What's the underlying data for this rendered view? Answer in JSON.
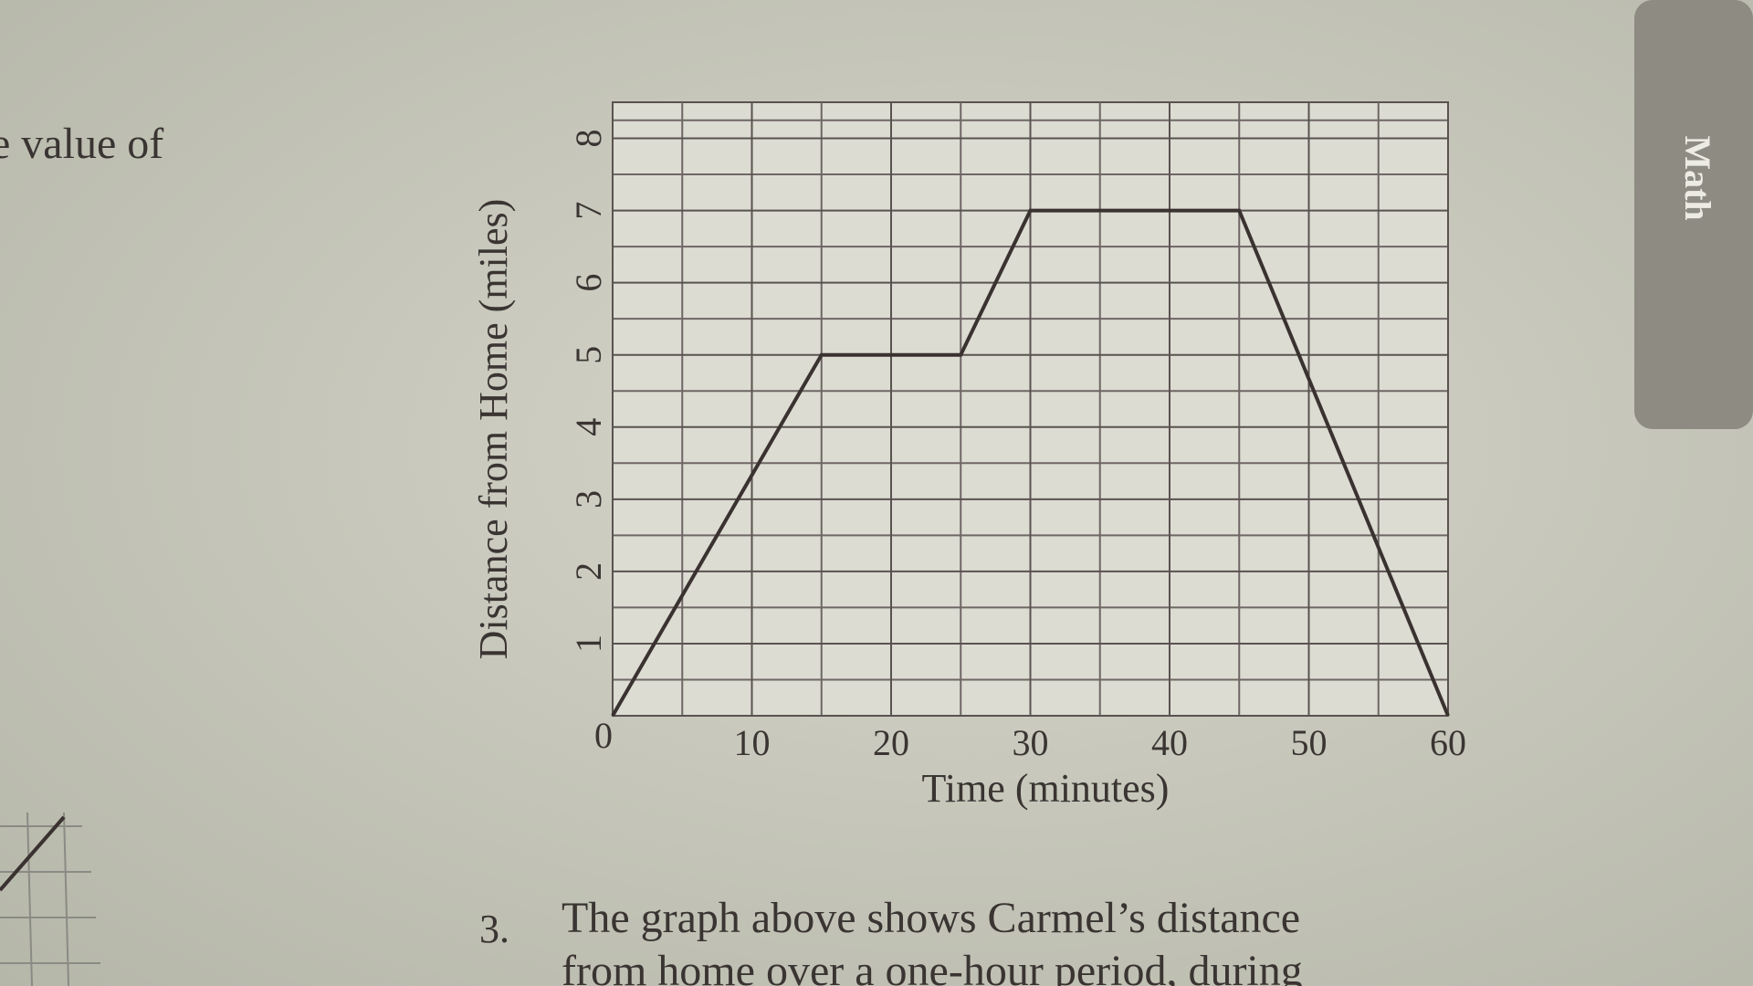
{
  "chart_data": {
    "type": "line",
    "xlabel": "Time (minutes)",
    "ylabel": "Distance from Home (miles)",
    "x": [
      0,
      15,
      25,
      30,
      45,
      60
    ],
    "series": [
      {
        "values": [
          0,
          5,
          5,
          7,
          7,
          0
        ],
        "color": "#3a3230"
      }
    ],
    "xlim": [
      0,
      60
    ],
    "xticks": [
      0,
      10,
      20,
      30,
      40,
      50,
      60
    ],
    "ylim": [
      0,
      8.5
    ],
    "yticks": [
      0,
      1,
      2,
      3,
      4,
      5,
      6,
      7,
      8
    ],
    "grid": true,
    "minor_grid": true
  },
  "page_text": {
    "fragment": "e value of",
    "tab": "Math",
    "question_number": "3.",
    "question": [
      "The graph above shows Carmel’s distance",
      "from home over a one-hour period, during"
    ]
  }
}
